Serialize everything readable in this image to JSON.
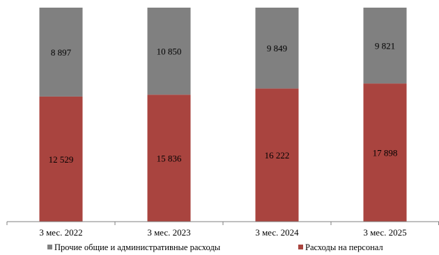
{
  "chart_data": {
    "type": "bar",
    "stacked": true,
    "categories": [
      "3 мес. 2022",
      "3 мес. 2023",
      "3 мес. 2024",
      "3 мес. 2025"
    ],
    "series": [
      {
        "name": "Расходы на персонал",
        "values": [
          12529,
          15836,
          16222,
          17898
        ],
        "labels": [
          "12 529",
          "15 836",
          "16 222",
          "17 898"
        ],
        "color": "#a9443f"
      },
      {
        "name": "Прочие общие и административные расходы",
        "values": [
          8897,
          10850,
          9849,
          9821
        ],
        "labels": [
          "8 897",
          "10 850",
          "9 849",
          "9 821"
        ],
        "color": "#808080"
      }
    ],
    "legend_order": [
      1,
      0
    ],
    "legend_position": "bottom",
    "normalized": true,
    "grid": false
  }
}
